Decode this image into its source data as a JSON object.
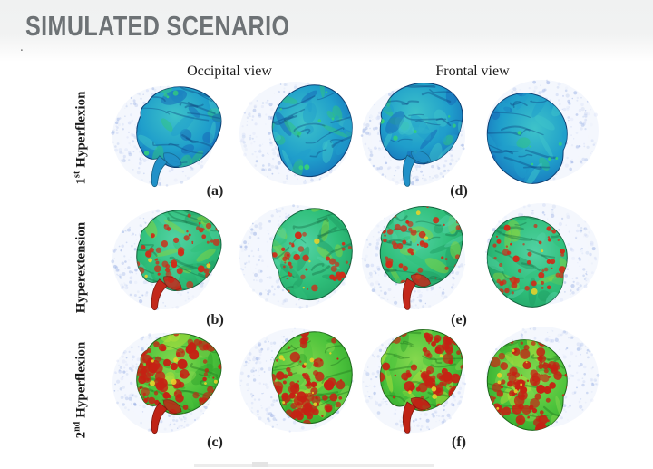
{
  "header": {
    "title": "SIMULATED SCENARIO",
    "title_color": "#6d7275",
    "stray_mark": "."
  },
  "figure": {
    "column_headers": [
      {
        "label": "Occipital view"
      },
      {
        "label": "Frontal view"
      }
    ],
    "rows": [
      {
        "name": "first-hyperflexion",
        "label": {
          "num": "1",
          "sup": "st",
          "text": "Hyperflexion"
        },
        "sublabels": [
          "(a)",
          "(d)"
        ],
        "palette": {
          "base": "#1565b8",
          "mid": "#1f9ecb",
          "light": "#3ec3c9",
          "accent": "#2fc47e",
          "stem": "#2191c8",
          "speckle": "#35d07a",
          "speckle_count": 10,
          "speckle_max_r": 2.2,
          "yellow_count": 0
        }
      },
      {
        "name": "hyperextension",
        "label": {
          "num": "",
          "sup": "",
          "text": "Hyperextension"
        },
        "sublabels": [
          "(b)",
          "(e)"
        ],
        "palette": {
          "base": "#1f9e63",
          "mid": "#2fbf7a",
          "light": "#52d2a4",
          "accent": "#86d43f",
          "stem": "#c3281b",
          "speckle": "#cf2c19",
          "speckle_count": 65,
          "speckle_max_r": 3.2,
          "yellow_count": 3
        }
      },
      {
        "name": "second-hyperflexion",
        "label": {
          "num": "2",
          "sup": "nd",
          "text": "Hyperflexion"
        },
        "sublabels": [
          "(c)",
          "(f)"
        ],
        "palette": {
          "base": "#2fa42c",
          "mid": "#4cc33c",
          "light": "#86d84e",
          "accent": "#b2df3a",
          "stem": "#bf2315",
          "speckle": "#c52214",
          "speckle_count": 120,
          "speckle_max_r": 5.0,
          "yellow_count": 8
        }
      }
    ],
    "halo_color": "#a9bce8"
  }
}
